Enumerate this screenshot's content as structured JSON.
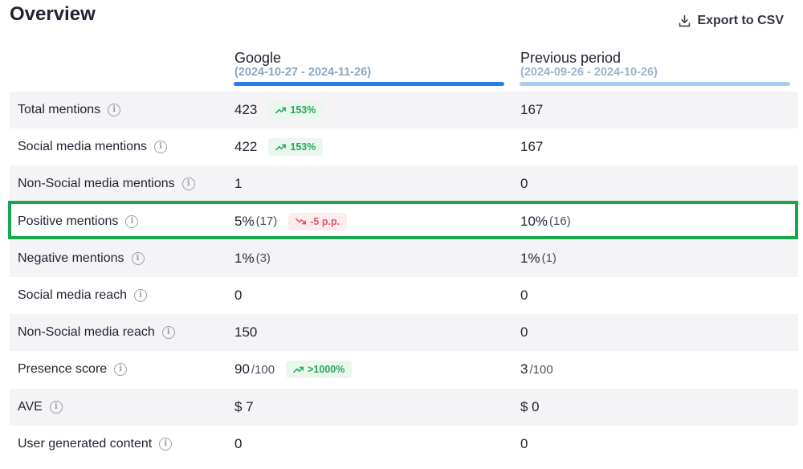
{
  "header": {
    "title": "Overview",
    "export_label": "Export to CSV"
  },
  "columns": [
    {
      "name": "Google",
      "range": "(2024-10-27 - 2024-11-26)",
      "color": "#2b7de1"
    },
    {
      "name": "Previous period",
      "range": "(2024-09-26 - 2024-10-26)",
      "color": "#a9cdf0"
    }
  ],
  "rows": [
    {
      "label": "Total mentions",
      "current": "423",
      "current_sub": "",
      "badge": "153%",
      "badge_dir": "up",
      "previous": "167",
      "previous_sub": ""
    },
    {
      "label": "Social media mentions",
      "current": "422",
      "current_sub": "",
      "badge": "153%",
      "badge_dir": "up",
      "previous": "167",
      "previous_sub": ""
    },
    {
      "label": "Non-Social media mentions",
      "current": "1",
      "current_sub": "",
      "badge": "",
      "badge_dir": "",
      "previous": "0",
      "previous_sub": ""
    },
    {
      "label": "Positive mentions",
      "current": "5%",
      "current_sub": "(17)",
      "badge": "-5 p.p.",
      "badge_dir": "down",
      "previous": "10%",
      "previous_sub": "(16)"
    },
    {
      "label": "Negative mentions",
      "current": "1%",
      "current_sub": "(3)",
      "badge": "",
      "badge_dir": "",
      "previous": "1%",
      "previous_sub": "(1)"
    },
    {
      "label": "Social media reach",
      "current": "0",
      "current_sub": "",
      "badge": "",
      "badge_dir": "",
      "previous": "0",
      "previous_sub": ""
    },
    {
      "label": "Non-Social media reach",
      "current": "150",
      "current_sub": "",
      "badge": "",
      "badge_dir": "",
      "previous": "0",
      "previous_sub": ""
    },
    {
      "label": "Presence score",
      "current": "90",
      "current_sub": "/100",
      "badge": ">1000%",
      "badge_dir": "up",
      "previous": "3",
      "previous_sub": "/100"
    },
    {
      "label": "AVE",
      "current": "$ 7",
      "current_sub": "",
      "badge": "",
      "badge_dir": "",
      "previous": "$ 0",
      "previous_sub": ""
    },
    {
      "label": "User generated content",
      "current": "0",
      "current_sub": "",
      "badge": "",
      "badge_dir": "",
      "previous": "0",
      "previous_sub": ""
    }
  ],
  "highlighted_row": "Positive mentions",
  "colors": {
    "up": "#27a857",
    "down": "#e25563",
    "highlight": "#17a84d"
  }
}
